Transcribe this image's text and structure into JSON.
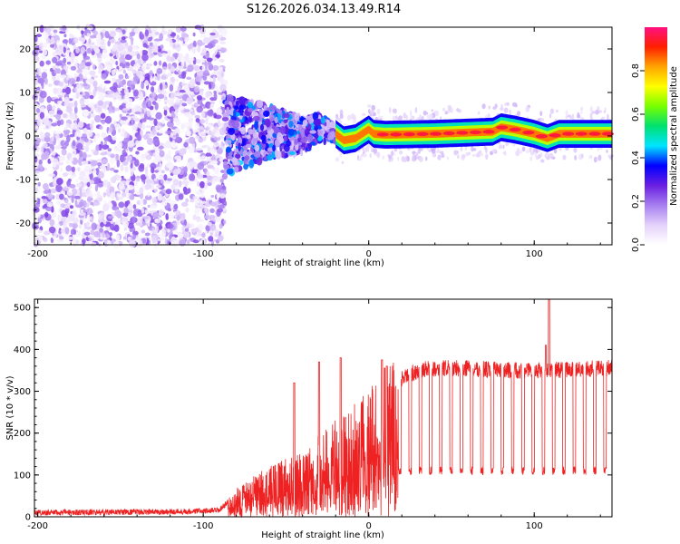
{
  "chart_data": [
    {
      "type": "heatmap",
      "title": "S126.2026.034.13.49.R14",
      "xlabel": "Height of straight line (km)",
      "ylabel": "Frequency (Hz)",
      "xlim": [
        -202,
        147
      ],
      "ylim": [
        -25,
        25
      ],
      "x_ticks": [
        -200,
        -100,
        0,
        100
      ],
      "y_ticks": [
        -20,
        -10,
        0,
        10,
        20
      ],
      "colorbar": {
        "label": "Normalized spectral amplitude",
        "range": [
          0.0,
          1.0
        ],
        "ticks": [
          0.0,
          0.2,
          0.4,
          0.6,
          0.8
        ],
        "tick_labels": [
          "0.0",
          "0.2",
          "0.4",
          "0.6",
          "0.8"
        ],
        "stops": [
          "#ffffff",
          "#e4d2fb",
          "#a77ff0",
          "#6a1fe0",
          "#0000ff",
          "#00e5ff",
          "#00e070",
          "#77ff00",
          "#ffff00",
          "#ffa500",
          "#ff2000",
          "#ff1080"
        ]
      },
      "regions": [
        {
          "x_range": [
            -202,
            -87
          ],
          "description": "broadband noise",
          "level": [
            0.02,
            0.25
          ]
        },
        {
          "x_range": [
            -87,
            -20
          ],
          "description": "scattered signal around 0 Hz",
          "center_hz": 0,
          "level": [
            0.1,
            0.45
          ]
        },
        {
          "x_range": [
            -20,
            147
          ],
          "description": "narrow carrier near 0.5 Hz",
          "center_hz": 0.5,
          "level": [
            0.5,
            1.0
          ]
        }
      ],
      "carrier_track": [
        [
          -85,
          0
        ],
        [
          -60,
          1
        ],
        [
          -40,
          0
        ],
        [
          -30,
          2
        ],
        [
          -20,
          0.5
        ],
        [
          -15,
          -1
        ],
        [
          -8,
          -0.5
        ],
        [
          -2,
          1
        ],
        [
          0,
          1.5
        ],
        [
          3,
          0.5
        ],
        [
          10,
          0.3
        ],
        [
          40,
          0.5
        ],
        [
          75,
          1
        ],
        [
          80,
          2
        ],
        [
          88,
          1.5
        ],
        [
          100,
          0.5
        ],
        [
          108,
          -0.5
        ],
        [
          115,
          0.5
        ],
        [
          147,
          0.5
        ]
      ]
    },
    {
      "type": "line",
      "xlabel": "Height of straight line (km)",
      "ylabel": "SNR (10 * v/v)",
      "xlim": [
        -202,
        147
      ],
      "ylim": [
        0,
        520
      ],
      "x_ticks": [
        -200,
        -100,
        0,
        100
      ],
      "y_ticks": [
        0,
        100,
        200,
        300,
        400,
        500
      ],
      "color": "#ee2222",
      "envelope": [
        [
          -202,
          10
        ],
        [
          -120,
          12
        ],
        [
          -90,
          15
        ],
        [
          -80,
          60
        ],
        [
          -60,
          100
        ],
        [
          -40,
          130
        ],
        [
          -25,
          180
        ],
        [
          -10,
          220
        ],
        [
          0,
          250
        ],
        [
          10,
          300
        ],
        [
          20,
          330
        ],
        [
          30,
          350
        ],
        [
          40,
          355
        ],
        [
          60,
          355
        ],
        [
          80,
          350
        ],
        [
          100,
          350
        ],
        [
          120,
          352
        ],
        [
          147,
          355
        ]
      ],
      "dips_start_x": 18,
      "dips_interval": 6.2,
      "dip_value": 110,
      "peaks": [
        [
          -45,
          320
        ],
        [
          -30,
          370
        ],
        [
          -17,
          380
        ],
        [
          8,
          375
        ],
        [
          11,
          360
        ],
        [
          109,
          520
        ],
        [
          107,
          410
        ]
      ]
    }
  ]
}
